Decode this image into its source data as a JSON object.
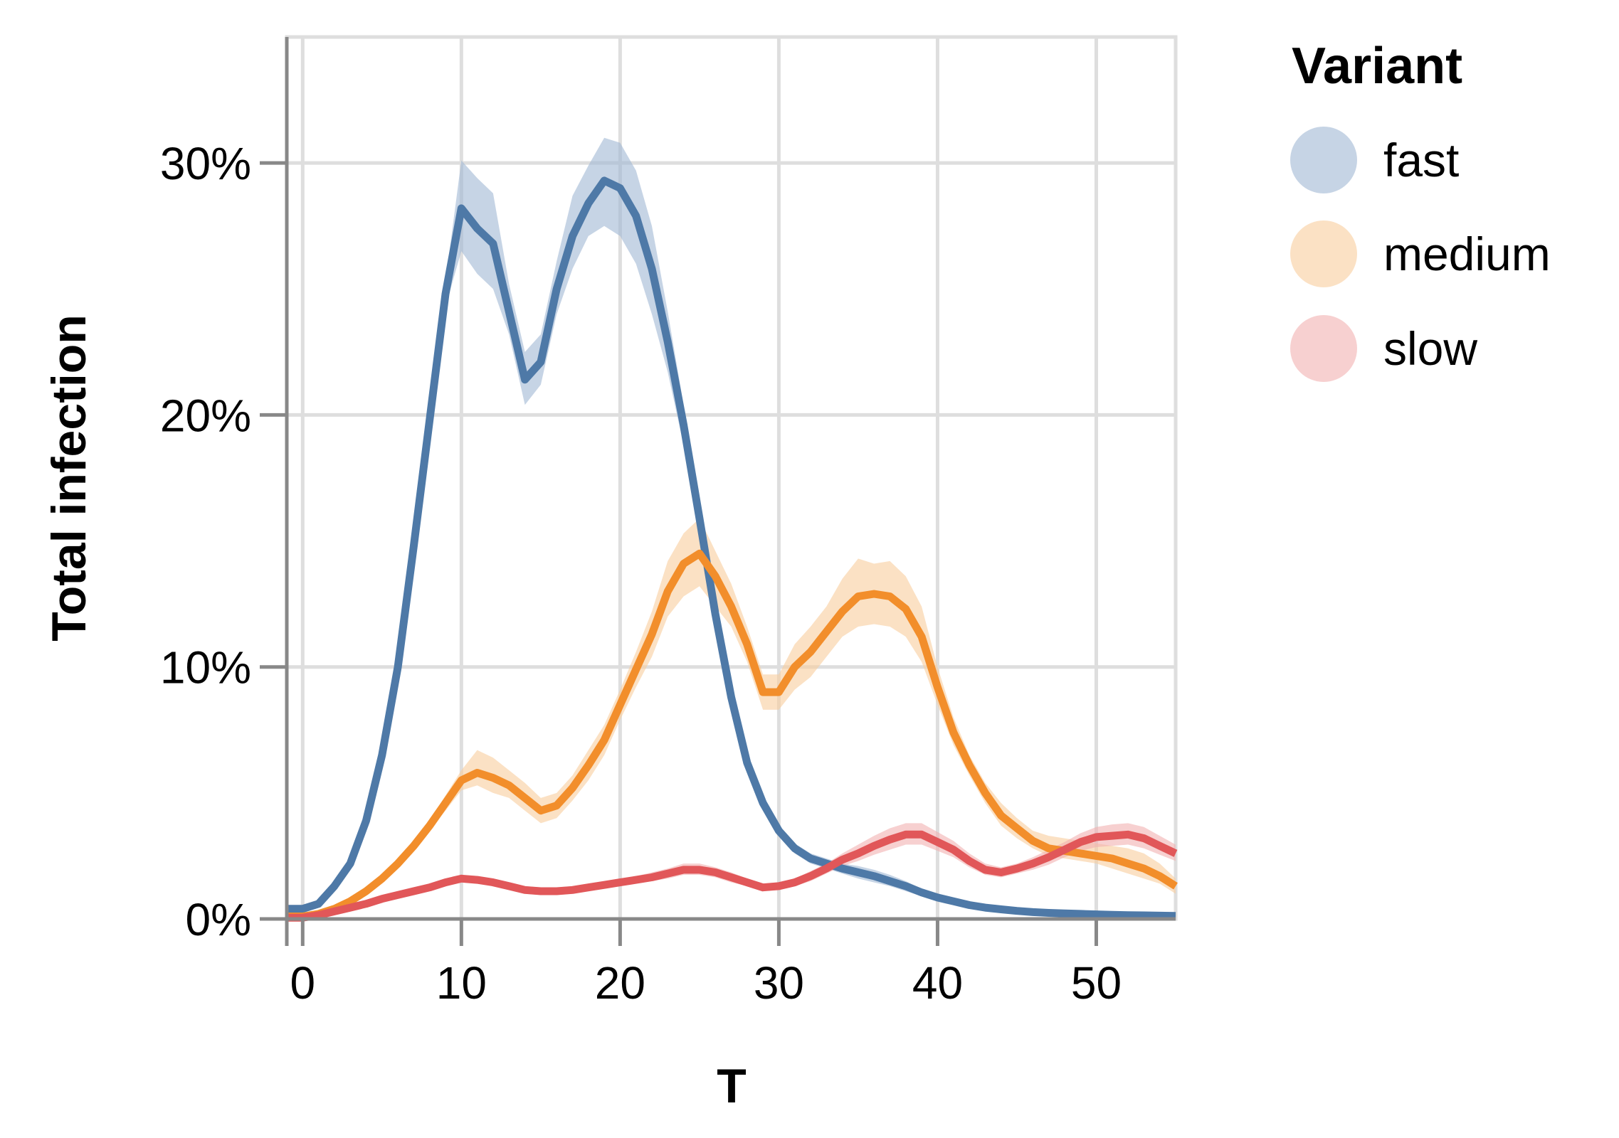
{
  "chart_data": {
    "type": "line",
    "xlabel": "T",
    "ylabel": "Total infection",
    "xlim": [
      -1,
      55
    ],
    "ylim": [
      0,
      35
    ],
    "x_ticks": [
      0,
      10,
      20,
      30,
      40,
      50
    ],
    "x_tick_labels": [
      "0",
      "10",
      "20",
      "30",
      "40",
      "50"
    ],
    "y_ticks": [
      0,
      10,
      20,
      30
    ],
    "y_tick_labels": [
      "0%",
      "10%",
      "20%",
      "30%"
    ],
    "grid": true,
    "legend": {
      "title": "Variant",
      "placement": "right",
      "entries": [
        "fast",
        "medium",
        "slow"
      ]
    },
    "x": [
      -1,
      0,
      1,
      2,
      3,
      4,
      5,
      6,
      7,
      8,
      9,
      10,
      11,
      12,
      13,
      14,
      15,
      16,
      17,
      18,
      19,
      20,
      21,
      22,
      23,
      24,
      25,
      26,
      27,
      28,
      29,
      30,
      31,
      32,
      33,
      34,
      35,
      36,
      37,
      38,
      39,
      40,
      41,
      42,
      43,
      44,
      45,
      46,
      47,
      48,
      49,
      50,
      51,
      52,
      53,
      54,
      55
    ],
    "series": [
      {
        "name": "fast",
        "color": "#4e79a7",
        "band_color": "#a0b7d3",
        "values": [
          0.4,
          0.4,
          0.6,
          1.3,
          2.2,
          3.9,
          6.5,
          10.0,
          14.8,
          19.8,
          24.8,
          28.2,
          27.4,
          26.8,
          24.1,
          21.4,
          22.1,
          25.0,
          27.1,
          28.4,
          29.3,
          29.0,
          27.9,
          25.8,
          22.9,
          19.6,
          15.9,
          12.1,
          8.8,
          6.2,
          4.6,
          3.5,
          2.8,
          2.4,
          2.2,
          2.0,
          1.85,
          1.7,
          1.5,
          1.3,
          1.05,
          0.85,
          0.7,
          0.55,
          0.45,
          0.38,
          0.32,
          0.27,
          0.24,
          0.22,
          0.2,
          0.18,
          0.16,
          0.15,
          0.14,
          0.13,
          0.12
        ],
        "lower": [
          0.3,
          0.3,
          0.5,
          1.2,
          2.1,
          3.8,
          6.3,
          9.8,
          14.6,
          19.5,
          24.3,
          26.5,
          25.6,
          25.0,
          23.2,
          20.4,
          21.2,
          24.0,
          25.8,
          27.1,
          27.5,
          27.1,
          26.0,
          24.0,
          21.7,
          18.8,
          15.4,
          11.7,
          8.5,
          6.0,
          4.4,
          3.3,
          2.6,
          2.2,
          2.0,
          1.8,
          1.6,
          1.45,
          1.3,
          1.1,
          0.9,
          0.75,
          0.6,
          0.5,
          0.4,
          0.33,
          0.28,
          0.24,
          0.21,
          0.19,
          0.17,
          0.15,
          0.14,
          0.13,
          0.12,
          0.11,
          0.1
        ],
        "upper": [
          0.5,
          0.5,
          0.7,
          1.4,
          2.3,
          4.0,
          6.7,
          10.2,
          15.0,
          20.1,
          25.3,
          30.1,
          29.4,
          28.8,
          25.2,
          22.5,
          23.2,
          26.1,
          28.7,
          29.9,
          31.0,
          30.8,
          29.7,
          27.5,
          24.1,
          20.4,
          16.4,
          12.5,
          9.1,
          6.4,
          4.8,
          3.7,
          3.0,
          2.6,
          2.4,
          2.2,
          2.1,
          1.95,
          1.75,
          1.5,
          1.2,
          0.95,
          0.8,
          0.6,
          0.5,
          0.43,
          0.36,
          0.3,
          0.27,
          0.25,
          0.23,
          0.21,
          0.18,
          0.17,
          0.16,
          0.15,
          0.14
        ]
      },
      {
        "name": "medium",
        "color": "#f28e2b",
        "band_color": "#f9cd9c",
        "values": [
          0.1,
          0.1,
          0.2,
          0.4,
          0.7,
          1.1,
          1.6,
          2.2,
          2.9,
          3.7,
          4.6,
          5.5,
          5.8,
          5.6,
          5.3,
          4.8,
          4.3,
          4.5,
          5.2,
          6.1,
          7.1,
          8.5,
          9.9,
          11.3,
          13.0,
          14.1,
          14.5,
          13.6,
          12.4,
          10.9,
          9.0,
          9.0,
          10.0,
          10.6,
          11.4,
          12.2,
          12.8,
          12.9,
          12.8,
          12.3,
          11.2,
          9.2,
          7.4,
          6.1,
          5.0,
          4.1,
          3.6,
          3.1,
          2.8,
          2.7,
          2.6,
          2.5,
          2.4,
          2.2,
          2.0,
          1.7,
          1.3
        ],
        "lower": [
          0.05,
          0.05,
          0.15,
          0.35,
          0.6,
          1.0,
          1.5,
          2.0,
          2.7,
          3.5,
          4.3,
          5.1,
          5.3,
          5.0,
          4.8,
          4.3,
          3.8,
          4.0,
          4.7,
          5.5,
          6.5,
          7.9,
          9.2,
          10.4,
          12.0,
          12.8,
          13.2,
          12.4,
          11.6,
          10.2,
          8.3,
          8.3,
          9.1,
          9.6,
          10.4,
          11.2,
          11.6,
          11.7,
          11.6,
          11.2,
          10.2,
          8.5,
          6.9,
          5.7,
          4.6,
          3.7,
          3.2,
          2.8,
          2.5,
          2.4,
          2.3,
          2.2,
          2.0,
          1.8,
          1.6,
          1.4,
          1.0
        ],
        "upper": [
          0.15,
          0.15,
          0.25,
          0.45,
          0.8,
          1.2,
          1.7,
          2.4,
          3.1,
          3.9,
          4.9,
          5.9,
          6.7,
          6.4,
          5.9,
          5.4,
          4.8,
          5.0,
          5.7,
          6.7,
          7.7,
          9.1,
          10.6,
          12.2,
          14.2,
          15.3,
          15.9,
          14.6,
          13.3,
          11.6,
          9.7,
          9.7,
          10.9,
          11.6,
          12.4,
          13.5,
          14.3,
          14.1,
          14.2,
          13.6,
          12.4,
          10.0,
          8.0,
          6.5,
          5.4,
          4.6,
          4.0,
          3.5,
          3.3,
          3.2,
          3.1,
          3.0,
          2.9,
          2.8,
          2.6,
          2.2,
          1.6
        ]
      },
      {
        "name": "slow",
        "color": "#e15759",
        "band_color": "#f1b0b1",
        "values": [
          0.05,
          0.05,
          0.15,
          0.3,
          0.45,
          0.6,
          0.8,
          0.95,
          1.1,
          1.25,
          1.45,
          1.6,
          1.55,
          1.45,
          1.3,
          1.15,
          1.1,
          1.1,
          1.15,
          1.25,
          1.35,
          1.45,
          1.55,
          1.65,
          1.8,
          1.95,
          1.95,
          1.85,
          1.65,
          1.45,
          1.25,
          1.3,
          1.45,
          1.7,
          2.0,
          2.35,
          2.6,
          2.9,
          3.15,
          3.35,
          3.35,
          3.05,
          2.75,
          2.3,
          1.95,
          1.85,
          2.0,
          2.2,
          2.45,
          2.75,
          3.05,
          3.25,
          3.3,
          3.35,
          3.2,
          2.9,
          2.6
        ],
        "lower": [
          0.02,
          0.02,
          0.1,
          0.25,
          0.4,
          0.55,
          0.7,
          0.85,
          1.0,
          1.15,
          1.3,
          1.45,
          1.4,
          1.3,
          1.15,
          1.0,
          0.95,
          0.95,
          1.0,
          1.1,
          1.2,
          1.3,
          1.4,
          1.5,
          1.6,
          1.75,
          1.75,
          1.65,
          1.45,
          1.3,
          1.1,
          1.15,
          1.3,
          1.5,
          1.8,
          2.1,
          2.3,
          2.55,
          2.75,
          2.95,
          2.95,
          2.7,
          2.45,
          2.05,
          1.75,
          1.65,
          1.8,
          1.95,
          2.15,
          2.45,
          2.7,
          2.85,
          2.9,
          2.95,
          2.8,
          2.55,
          2.3
        ],
        "upper": [
          0.08,
          0.08,
          0.2,
          0.35,
          0.5,
          0.65,
          0.9,
          1.05,
          1.2,
          1.35,
          1.6,
          1.75,
          1.7,
          1.6,
          1.45,
          1.3,
          1.25,
          1.25,
          1.3,
          1.4,
          1.5,
          1.6,
          1.7,
          1.85,
          2.0,
          2.2,
          2.2,
          2.05,
          1.85,
          1.6,
          1.4,
          1.45,
          1.6,
          1.9,
          2.2,
          2.6,
          2.95,
          3.3,
          3.6,
          3.8,
          3.8,
          3.45,
          3.1,
          2.6,
          2.2,
          2.05,
          2.2,
          2.45,
          2.75,
          3.05,
          3.4,
          3.65,
          3.75,
          3.8,
          3.65,
          3.3,
          2.95
        ]
      }
    ]
  }
}
